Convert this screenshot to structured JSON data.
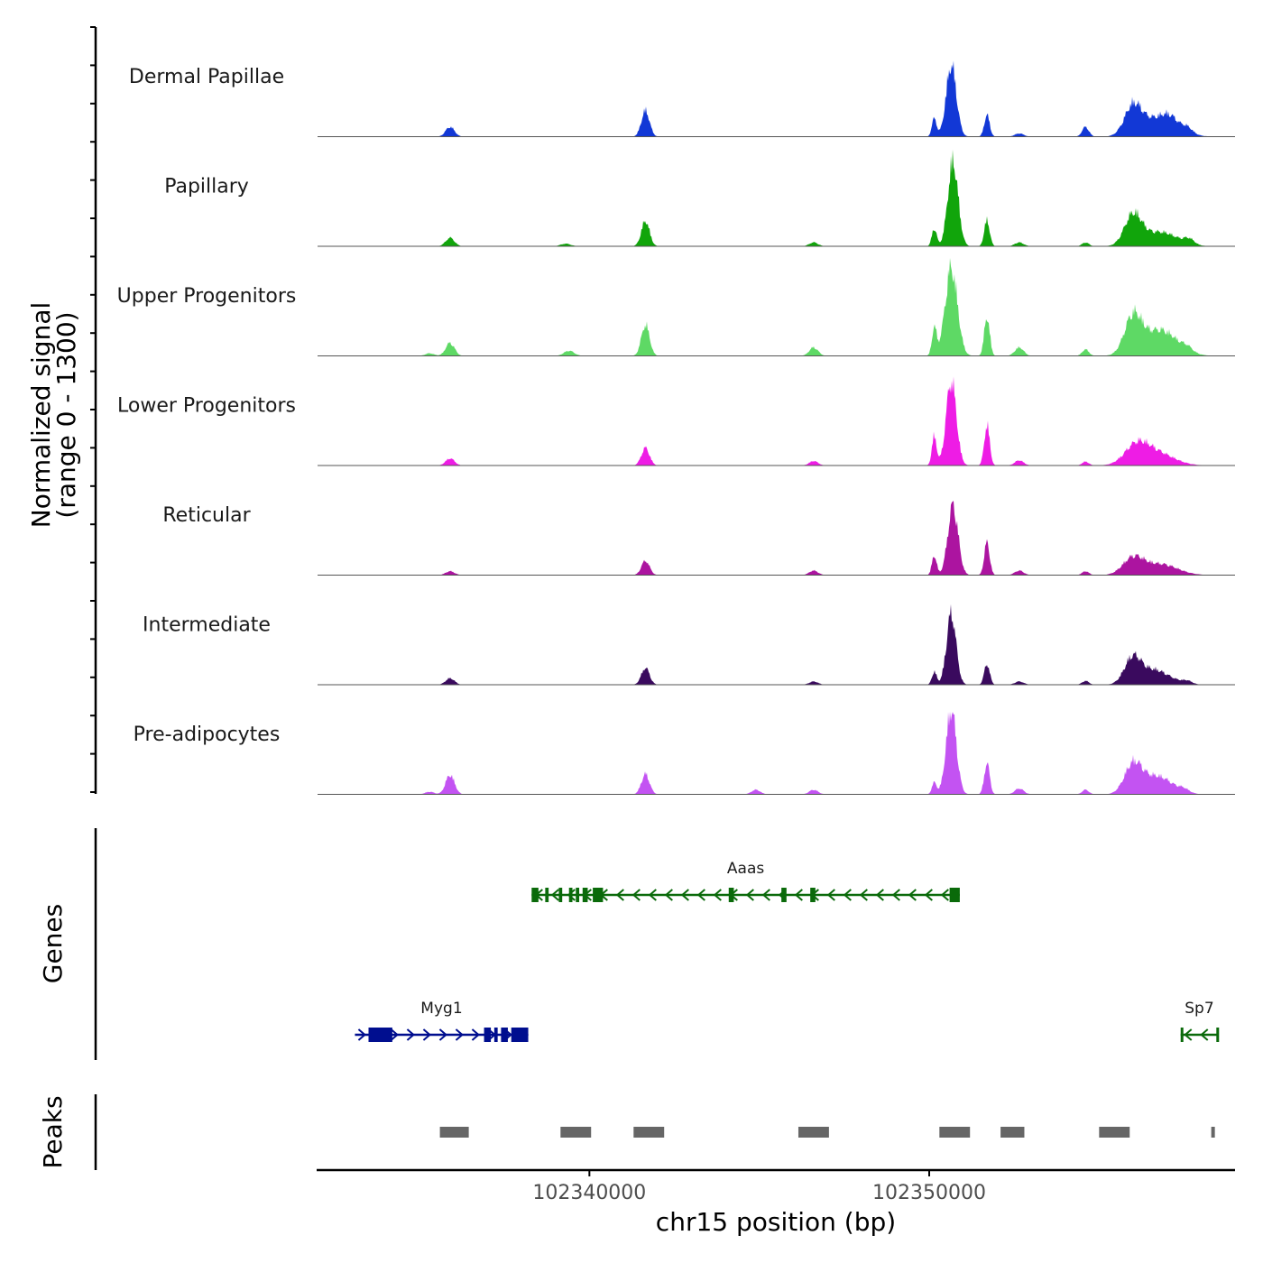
{
  "chart_data": {
    "type": "area",
    "title": "",
    "xlabel": "chr15 position (bp)",
    "ylabel_line1": "Normalized signal",
    "ylabel_line2": "(range 0 - 1300)",
    "ylim": [
      0,
      1300
    ],
    "xlim": [
      102332000,
      102359000
    ],
    "x_ticks": [
      102340000,
      102350000
    ],
    "x_tick_labels": [
      "102340000",
      "102350000"
    ],
    "section_labels": {
      "genes": "Genes",
      "peaks": "Peaks"
    },
    "series": [
      {
        "name": "Dermal Papillae",
        "color": "#1238d6",
        "peaks": [
          [
            102335900,
            150,
            130
          ],
          [
            102341650,
            400,
            120
          ],
          [
            102350150,
            280,
            70
          ],
          [
            102350650,
            1100,
            150
          ],
          [
            102351700,
            330,
            80
          ],
          [
            102352650,
            50,
            130
          ],
          [
            102354600,
            150,
            100
          ],
          [
            102356000,
            440,
            250
          ],
          [
            102356800,
            300,
            500
          ],
          [
            102357100,
            90,
            200
          ],
          [
            102357600,
            80,
            150
          ]
        ]
      },
      {
        "name": "Papillary",
        "color": "#11a50b",
        "peaks": [
          [
            102335900,
            130,
            130
          ],
          [
            102339300,
            40,
            150
          ],
          [
            102341650,
            390,
            120
          ],
          [
            102346600,
            60,
            130
          ],
          [
            102350150,
            280,
            70
          ],
          [
            102350700,
            1300,
            150
          ],
          [
            102351700,
            400,
            80
          ],
          [
            102352650,
            60,
            130
          ],
          [
            102354600,
            60,
            100
          ],
          [
            102356000,
            460,
            250
          ],
          [
            102356800,
            220,
            500
          ],
          [
            102357650,
            80,
            150
          ]
        ]
      },
      {
        "name": "Upper Progenitors",
        "color": "#5ed965",
        "peaks": [
          [
            102335300,
            40,
            130
          ],
          [
            102335900,
            200,
            130
          ],
          [
            102339400,
            80,
            150
          ],
          [
            102341650,
            480,
            120
          ],
          [
            102346600,
            130,
            130
          ],
          [
            102350150,
            420,
            70
          ],
          [
            102350650,
            1350,
            180
          ],
          [
            102351700,
            600,
            80
          ],
          [
            102352650,
            130,
            130
          ],
          [
            102354600,
            100,
            100
          ],
          [
            102356000,
            560,
            250
          ],
          [
            102356800,
            400,
            500
          ],
          [
            102357600,
            60,
            150
          ]
        ]
      },
      {
        "name": "Lower Progenitors",
        "color": "#ee1ce5",
        "peaks": [
          [
            102335900,
            110,
            130
          ],
          [
            102341650,
            270,
            120
          ],
          [
            102346600,
            70,
            130
          ],
          [
            102350150,
            450,
            70
          ],
          [
            102350650,
            1300,
            150
          ],
          [
            102351700,
            620,
            80
          ],
          [
            102352650,
            80,
            130
          ],
          [
            102354600,
            60,
            100
          ],
          [
            102356100,
            280,
            350
          ],
          [
            102356700,
            190,
            500
          ]
        ]
      },
      {
        "name": "Reticular",
        "color": "#ac14a0",
        "peaks": [
          [
            102335900,
            60,
            130
          ],
          [
            102341650,
            220,
            120
          ],
          [
            102346600,
            70,
            130
          ],
          [
            102350150,
            300,
            70
          ],
          [
            102350700,
            1070,
            150
          ],
          [
            102351700,
            500,
            80
          ],
          [
            102352650,
            70,
            130
          ],
          [
            102354600,
            60,
            100
          ],
          [
            102356000,
            250,
            300
          ],
          [
            102356800,
            170,
            500
          ]
        ]
      },
      {
        "name": "Intermediate",
        "color": "#3a0a5e",
        "peaks": [
          [
            102335900,
            100,
            130
          ],
          [
            102341650,
            260,
            120
          ],
          [
            102346600,
            50,
            130
          ],
          [
            102350150,
            200,
            70
          ],
          [
            102350650,
            1090,
            140
          ],
          [
            102351700,
            320,
            80
          ],
          [
            102352650,
            50,
            130
          ],
          [
            102354600,
            60,
            100
          ],
          [
            102356000,
            430,
            250
          ],
          [
            102356600,
            200,
            300
          ],
          [
            102357100,
            80,
            300
          ],
          [
            102357600,
            50,
            150
          ]
        ]
      },
      {
        "name": "Pre-adipocytes",
        "color": "#c353f2",
        "peaks": [
          [
            102335300,
            40,
            130
          ],
          [
            102335900,
            300,
            130
          ],
          [
            102341650,
            310,
            120
          ],
          [
            102344900,
            70,
            130
          ],
          [
            102346600,
            70,
            130
          ],
          [
            102350150,
            180,
            70
          ],
          [
            102350650,
            1300,
            150
          ],
          [
            102351700,
            480,
            80
          ],
          [
            102352650,
            90,
            130
          ],
          [
            102354600,
            70,
            100
          ],
          [
            102356000,
            430,
            250
          ],
          [
            102356700,
            280,
            450
          ],
          [
            102357500,
            50,
            150
          ]
        ]
      }
    ],
    "genes": [
      {
        "name": "Myg1",
        "strand": "+",
        "color": "#000e8f",
        "start": 102333100,
        "end": 102338200,
        "exons": [
          [
            102333500,
            102334200
          ],
          [
            102336900,
            102337100
          ],
          [
            102337200,
            102337300
          ],
          [
            102337400,
            102337600
          ],
          [
            102337700,
            102338200
          ]
        ]
      },
      {
        "name": "Aaas",
        "strand": "-",
        "color": "#0a6a0a",
        "start": 102338300,
        "end": 102350900,
        "exons": [
          [
            102338300,
            102338500
          ],
          [
            102338700,
            102338800
          ],
          [
            102339100,
            102339200
          ],
          [
            102339400,
            102339500
          ],
          [
            102339600,
            102339700
          ],
          [
            102339800,
            102339950
          ],
          [
            102340100,
            102340400
          ],
          [
            102344100,
            102344250
          ],
          [
            102345650,
            102345800
          ],
          [
            102346500,
            102346650
          ],
          [
            102350600,
            102350900
          ]
        ]
      },
      {
        "name": "Sp7",
        "strand": "-",
        "color": "#0a6a0a",
        "start": 102357400,
        "end": 102358500,
        "exons": [
          [
            102357400,
            102357450
          ],
          [
            102358450,
            102358500
          ]
        ]
      }
    ],
    "peaks_regions": [
      [
        102335600,
        102336450
      ],
      [
        102339150,
        102340050
      ],
      [
        102341300,
        102342200
      ],
      [
        102346150,
        102347050
      ],
      [
        102350300,
        102351200
      ],
      [
        102352100,
        102352800
      ],
      [
        102355000,
        102355900
      ],
      [
        102358300,
        102358400
      ]
    ]
  }
}
